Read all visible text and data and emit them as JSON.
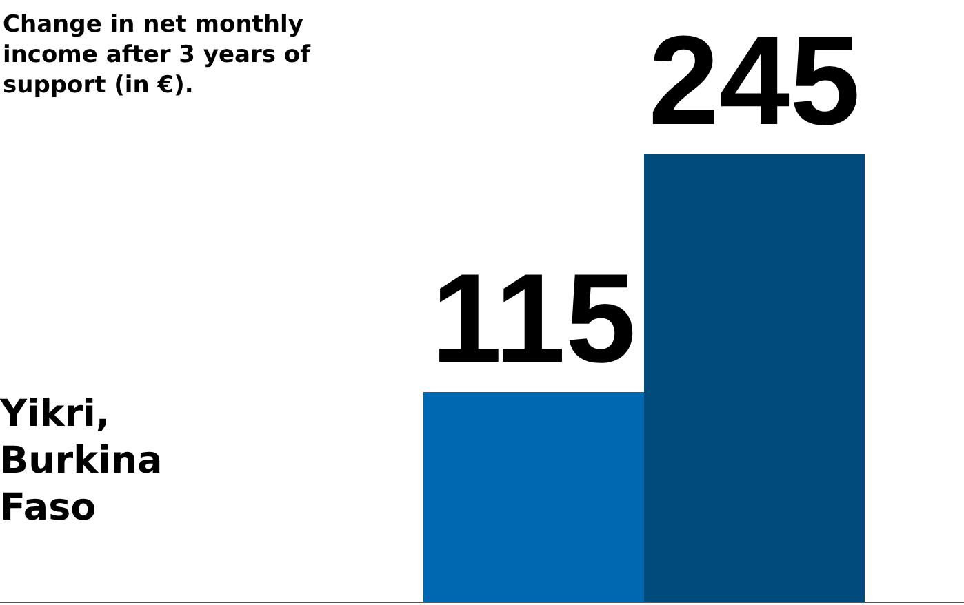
{
  "chart_data": {
    "type": "bar",
    "title": "Change in net monthly income after 3 years of support (in €).",
    "categories": [
      null,
      null
    ],
    "values": [
      115,
      245
    ],
    "colors": [
      "#0067b1",
      "#004a7c"
    ],
    "data_labels": true,
    "annotations": [
      "Yikri, Burkina Faso"
    ]
  }
}
